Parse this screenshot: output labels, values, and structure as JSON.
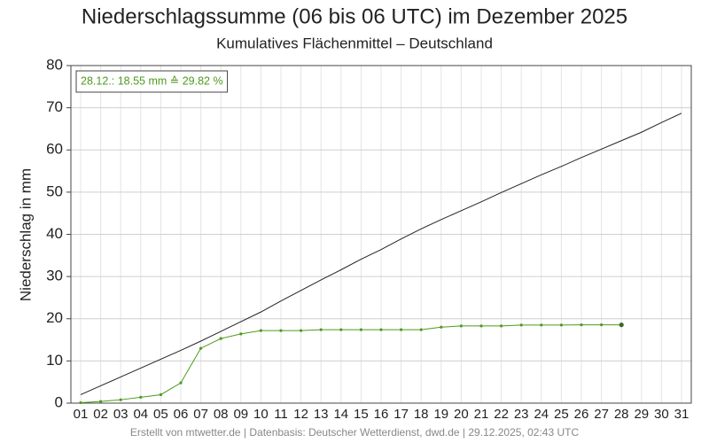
{
  "chart_data": {
    "type": "line",
    "title": "Niederschlagssumme (06 bis 06 UTC) im Dezember 2025",
    "subtitle": "Kumulatives Flächenmittel – Deutschland",
    "y_label": "Niederschlag in mm",
    "annotation": "28.12.: 18.55 mm ≙ 29.82 %",
    "footer": "Erstellt von mtwetter.de | Datenbasis: Deutscher Wetterdienst, dwd.de | 29.12.2025, 02:43 UTC",
    "categories": [
      "01",
      "02",
      "03",
      "04",
      "05",
      "06",
      "07",
      "08",
      "09",
      "10",
      "11",
      "12",
      "13",
      "14",
      "15",
      "16",
      "17",
      "18",
      "19",
      "20",
      "21",
      "22",
      "23",
      "24",
      "25",
      "26",
      "27",
      "28",
      "29",
      "30",
      "31"
    ],
    "series": [
      {
        "color": "#222222",
        "values": [
          2.0,
          4.1,
          6.2,
          8.3,
          10.4,
          12.5,
          14.7,
          17.0,
          19.3,
          21.6,
          24.2,
          26.7,
          29.2,
          31.6,
          34.1,
          36.4,
          38.9,
          41.3,
          43.5,
          45.6,
          47.7,
          49.9,
          52.0,
          54.1,
          56.1,
          58.2,
          60.2,
          62.2,
          64.2,
          66.5,
          68.7
        ]
      },
      {
        "color": "#4e9a1e",
        "values": [
          0.1,
          0.4,
          0.8,
          1.4,
          2.0,
          4.8,
          13.0,
          15.3,
          16.4,
          17.2,
          17.2,
          17.2,
          17.4,
          17.4,
          17.4,
          17.4,
          17.4,
          17.4,
          18.0,
          18.3,
          18.3,
          18.3,
          18.5,
          18.5,
          18.5,
          18.55,
          18.55,
          18.55,
          null,
          null,
          null
        ],
        "markers": true
      }
    ],
    "ylim": [
      0,
      80
    ],
    "yticks": [
      0,
      10,
      20,
      30,
      40,
      50,
      60,
      70,
      80
    ],
    "grid": true
  }
}
